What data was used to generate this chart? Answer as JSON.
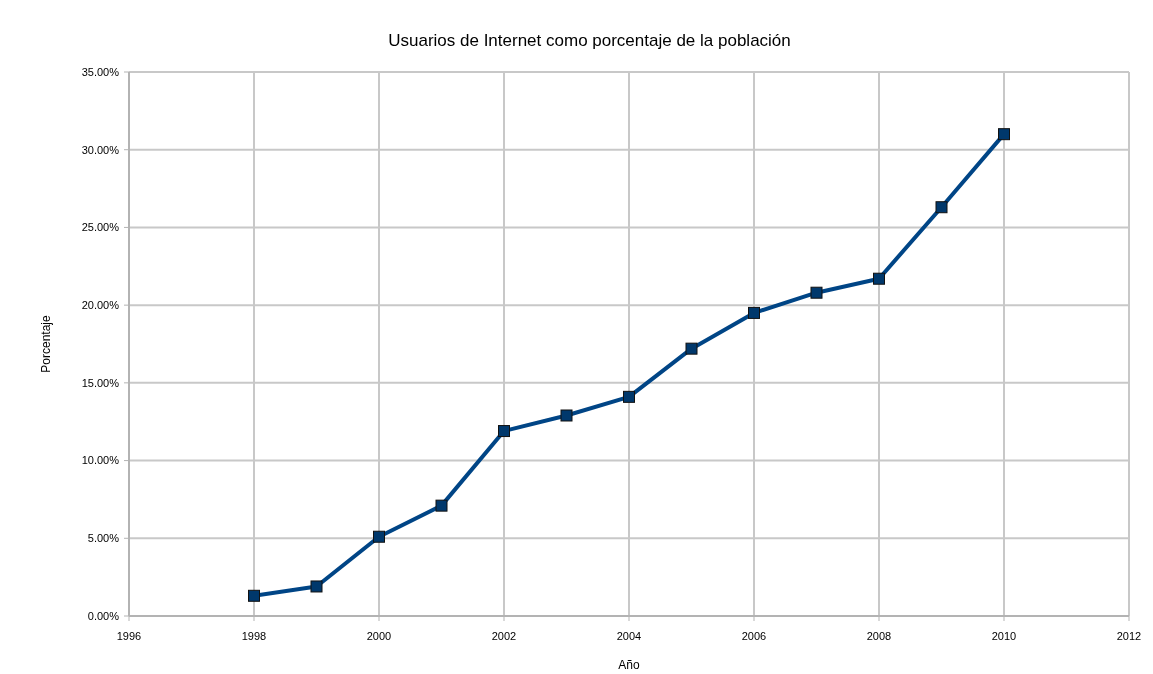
{
  "chart_data": {
    "type": "line",
    "title": "Usuarios de Internet como porcentaje de la población",
    "xlabel": "Año",
    "ylabel": "Porcentaje",
    "x": [
      1998,
      1999,
      2000,
      2001,
      2002,
      2003,
      2004,
      2005,
      2006,
      2007,
      2008,
      2009,
      2010
    ],
    "series": [
      {
        "color": "#004586",
        "values": [
          1.3,
          1.9,
          5.1,
          7.1,
          11.9,
          12.9,
          14.1,
          17.2,
          19.5,
          20.8,
          21.7,
          26.3,
          31.0
        ]
      }
    ],
    "xlim": [
      1996,
      2012
    ],
    "xticks": [
      1996,
      1998,
      2000,
      2002,
      2004,
      2006,
      2008,
      2010,
      2012
    ],
    "ylim": [
      0,
      35
    ],
    "yticks": [
      {
        "value": 0,
        "label": "0.00%"
      },
      {
        "value": 5,
        "label": "5.00%"
      },
      {
        "value": 10,
        "label": "10.00%"
      },
      {
        "value": 15,
        "label": "15.00%"
      },
      {
        "value": 20,
        "label": "20.00%"
      },
      {
        "value": 25,
        "label": "25.00%"
      },
      {
        "value": 30,
        "label": "30.00%"
      },
      {
        "value": 35,
        "label": "35.00%"
      }
    ],
    "grid": true,
    "marker": "square",
    "line_style": "solid"
  }
}
